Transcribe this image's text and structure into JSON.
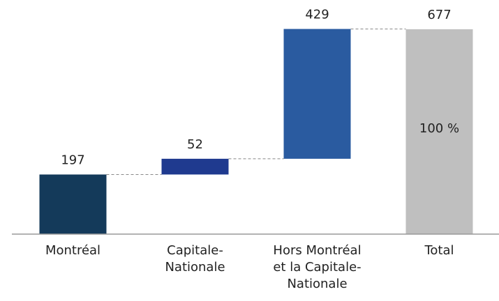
{
  "chart_data": {
    "type": "waterfall",
    "categories": [
      "Montréal",
      "Capitale-Nationale",
      "Hors Montréal et la Capitale-Nationale",
      "Total"
    ],
    "values": [
      197,
      52,
      429,
      677
    ],
    "colors": [
      "#143a5a",
      "#1f3a8f",
      "#2a5ba0",
      "#bfbfbf"
    ],
    "bar_annotations": [
      null,
      null,
      null,
      "100 %"
    ],
    "ylim": [
      0,
      677
    ]
  }
}
